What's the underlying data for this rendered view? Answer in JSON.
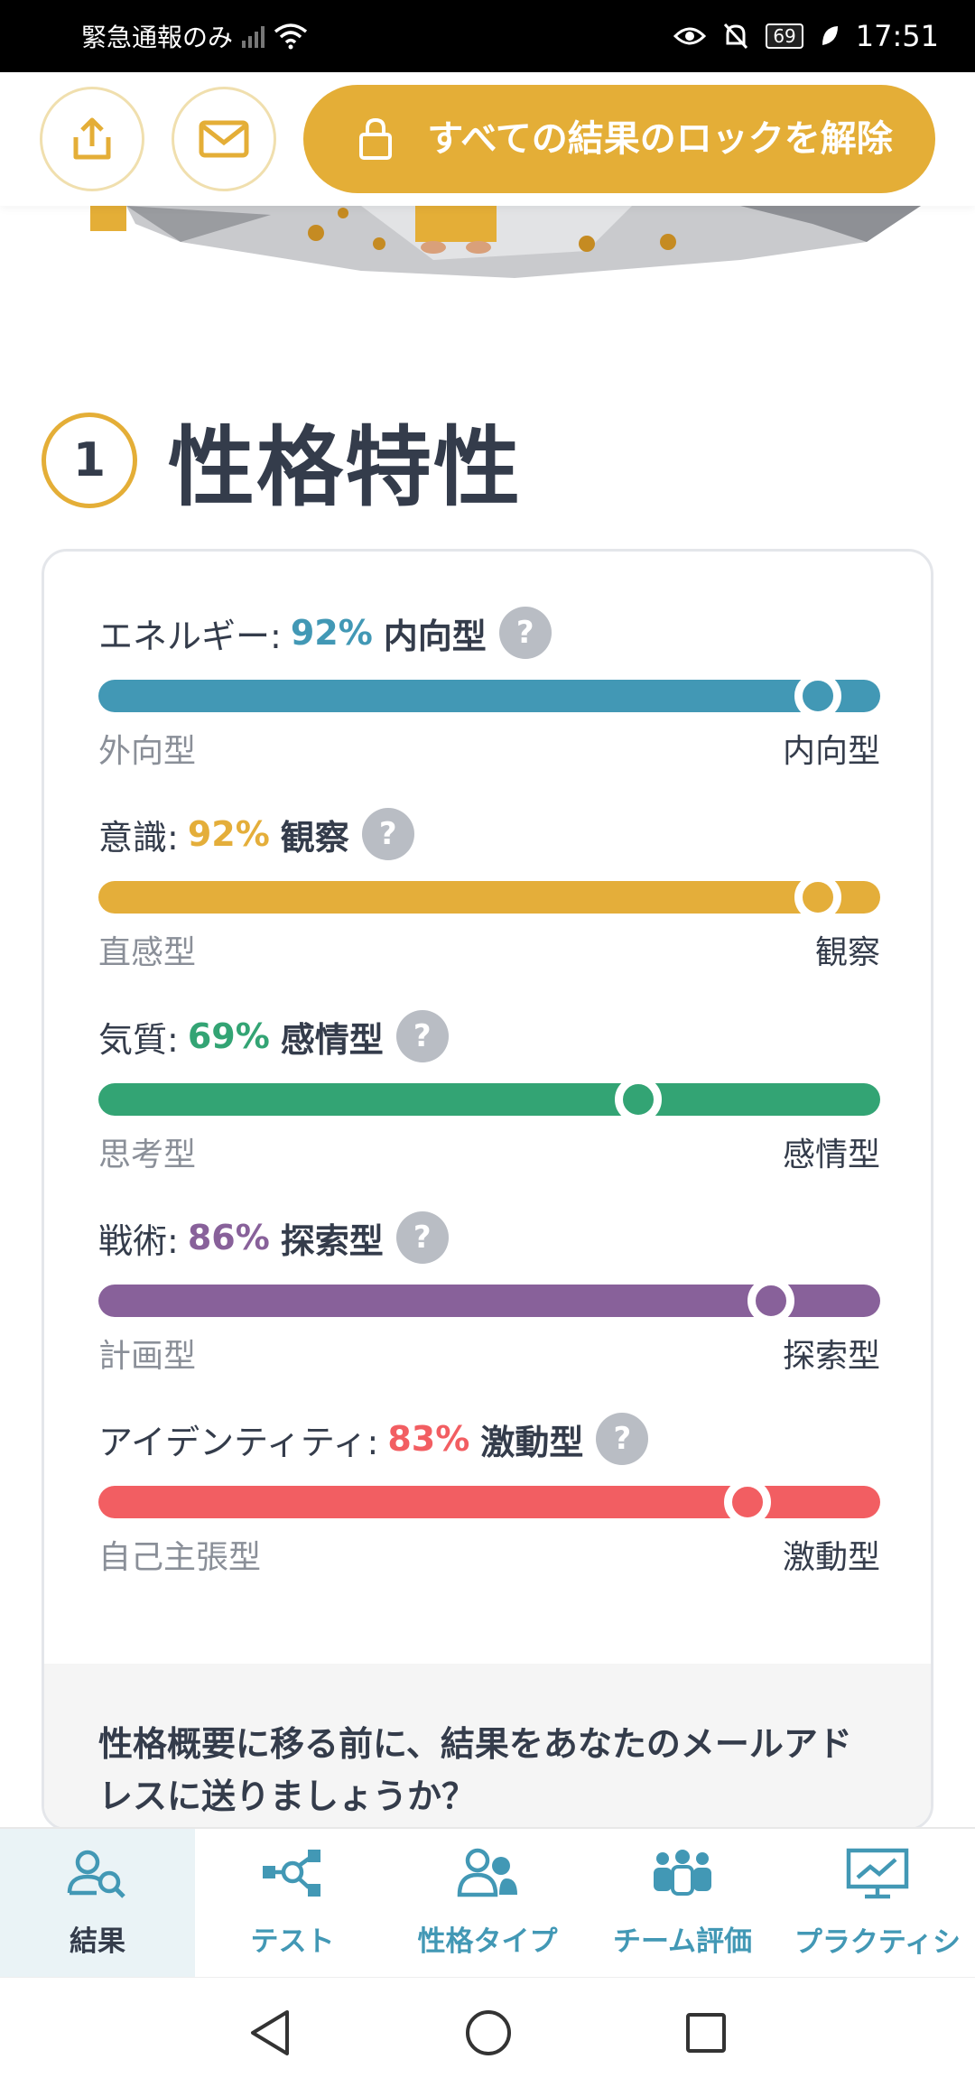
{
  "status_bar": {
    "left_text": "緊急通報のみ",
    "battery": "69",
    "time": "17:51"
  },
  "action_bar": {
    "share_icon": "share-icon",
    "mail_icon": "mail-icon",
    "unlock_label": "すべての結果のロックを解除"
  },
  "section": {
    "number": "1",
    "title": "性格特性"
  },
  "traits": [
    {
      "name": "エネルギー:",
      "percent": "92%",
      "result": "内向型",
      "value": 92,
      "position": 92,
      "left": "外向型",
      "right": "内向型",
      "color": "#4298b5"
    },
    {
      "name": "意識:",
      "percent": "92%",
      "result": "観察",
      "value": 92,
      "position": 92,
      "left": "直感型",
      "right": "観察",
      "color": "#e4ae3a"
    },
    {
      "name": "気質:",
      "percent": "69%",
      "result": "感情型",
      "value": 69,
      "position": 69,
      "left": "思考型",
      "right": "感情型",
      "color": "#33a474"
    },
    {
      "name": "戦術:",
      "percent": "86%",
      "result": "探索型",
      "value": 86,
      "position": 86,
      "left": "計画型",
      "right": "探索型",
      "color": "#88619a"
    },
    {
      "name": "アイデンティティ:",
      "percent": "83%",
      "result": "激動型",
      "value": 83,
      "position": 83,
      "left": "自己主張型",
      "right": "激動型",
      "color": "#f25e62"
    }
  ],
  "footer": {
    "text": "性格概要に移る前に、結果をあなたのメールアドレスに送りましょうか？"
  },
  "bottom_nav": [
    {
      "label": "結果",
      "icon": "person-search-icon",
      "active": true
    },
    {
      "label": "テスト",
      "icon": "network-icon",
      "active": false
    },
    {
      "label": "性格タイプ",
      "icon": "people-icon",
      "active": false
    },
    {
      "label": "チーム評価",
      "icon": "team-icon",
      "active": false
    },
    {
      "label": "プラクティシ",
      "icon": "presentation-icon",
      "active": false
    }
  ]
}
